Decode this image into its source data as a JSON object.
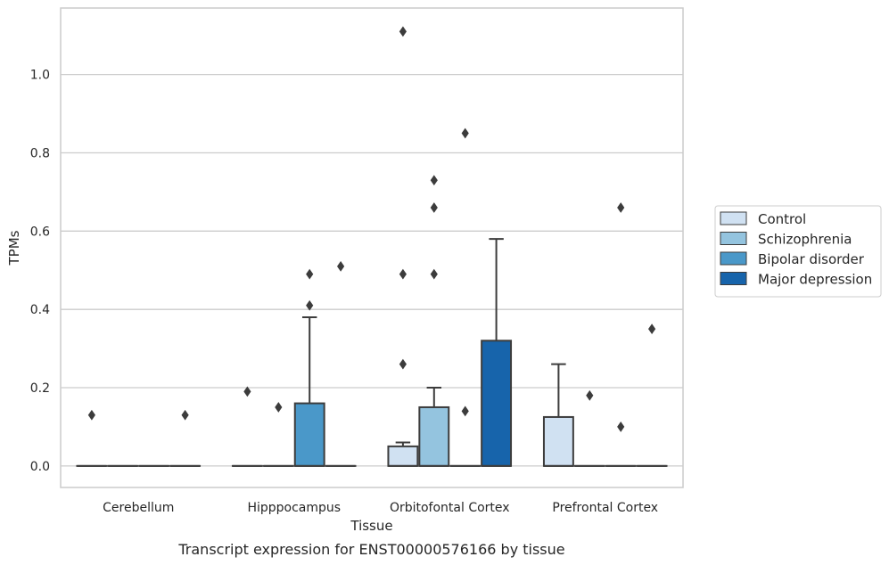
{
  "chart_data": {
    "type": "box",
    "xlabel": "Tissue",
    "ylabel": "TPMs",
    "caption": "Transcript expression for ENST00000576166 by tissue",
    "ylim": [
      -0.055,
      1.17
    ],
    "yticks": [
      0.0,
      0.2,
      0.4,
      0.6,
      0.8,
      1.0
    ],
    "ytick_labels": [
      "0.0",
      "0.2",
      "0.4",
      "0.6",
      "0.8",
      "1.0"
    ],
    "grid": "horizontal",
    "legend_position": "right",
    "categories": [
      "Cerebellum",
      "Hipppocampus",
      "Orbitofontal Cortex",
      "Prefrontal Cortex"
    ],
    "series": [
      {
        "name": "Control",
        "color": "#d0e1f2",
        "boxes": [
          {
            "q1": 0,
            "median": 0,
            "q3": 0,
            "whislo": 0,
            "whishi": 0,
            "fliers": [
              0.13
            ]
          },
          {
            "q1": 0,
            "median": 0,
            "q3": 0,
            "whislo": 0,
            "whishi": 0,
            "fliers": [
              0.19
            ]
          },
          {
            "q1": 0,
            "median": 0,
            "q3": 0.05,
            "whislo": 0,
            "whishi": 0.06,
            "fliers": [
              0.26,
              0.49,
              1.11
            ]
          },
          {
            "q1": 0,
            "median": 0,
            "q3": 0.125,
            "whislo": 0,
            "whishi": 0.26,
            "fliers": []
          }
        ]
      },
      {
        "name": "Schizophrenia",
        "color": "#94c4df",
        "boxes": [
          {
            "q1": 0,
            "median": 0,
            "q3": 0,
            "whislo": 0,
            "whishi": 0,
            "fliers": []
          },
          {
            "q1": 0,
            "median": 0,
            "q3": 0,
            "whislo": 0,
            "whishi": 0,
            "fliers": [
              0.15
            ]
          },
          {
            "q1": 0,
            "median": 0,
            "q3": 0.15,
            "whislo": 0,
            "whishi": 0.2,
            "fliers": [
              0.49,
              0.66,
              0.73
            ]
          },
          {
            "q1": 0,
            "median": 0,
            "q3": 0,
            "whislo": 0,
            "whishi": 0,
            "fliers": [
              0.18
            ]
          }
        ]
      },
      {
        "name": "Bipolar disorder",
        "color": "#4a98c9",
        "boxes": [
          {
            "q1": 0,
            "median": 0,
            "q3": 0,
            "whislo": 0,
            "whishi": 0,
            "fliers": []
          },
          {
            "q1": 0,
            "median": 0,
            "q3": 0.16,
            "whislo": 0,
            "whishi": 0.38,
            "fliers": [
              0.41,
              0.49
            ]
          },
          {
            "q1": 0,
            "median": 0,
            "q3": 0,
            "whislo": 0,
            "whishi": 0,
            "fliers": [
              0.14,
              0.85
            ]
          },
          {
            "q1": 0,
            "median": 0,
            "q3": 0,
            "whislo": 0,
            "whishi": 0,
            "fliers": [
              0.1,
              0.66
            ]
          }
        ]
      },
      {
        "name": "Major depression",
        "color": "#1764ab",
        "boxes": [
          {
            "q1": 0,
            "median": 0,
            "q3": 0,
            "whislo": 0,
            "whishi": 0,
            "fliers": [
              0.13
            ]
          },
          {
            "q1": 0,
            "median": 0,
            "q3": 0,
            "whislo": 0,
            "whishi": 0,
            "fliers": [
              0.51
            ]
          },
          {
            "q1": 0,
            "median": 0,
            "q3": 0.32,
            "whislo": 0,
            "whishi": 0.58,
            "fliers": []
          },
          {
            "q1": 0,
            "median": 0,
            "q3": 0,
            "whislo": 0,
            "whishi": 0,
            "fliers": [
              0.35
            ]
          }
        ]
      }
    ]
  }
}
